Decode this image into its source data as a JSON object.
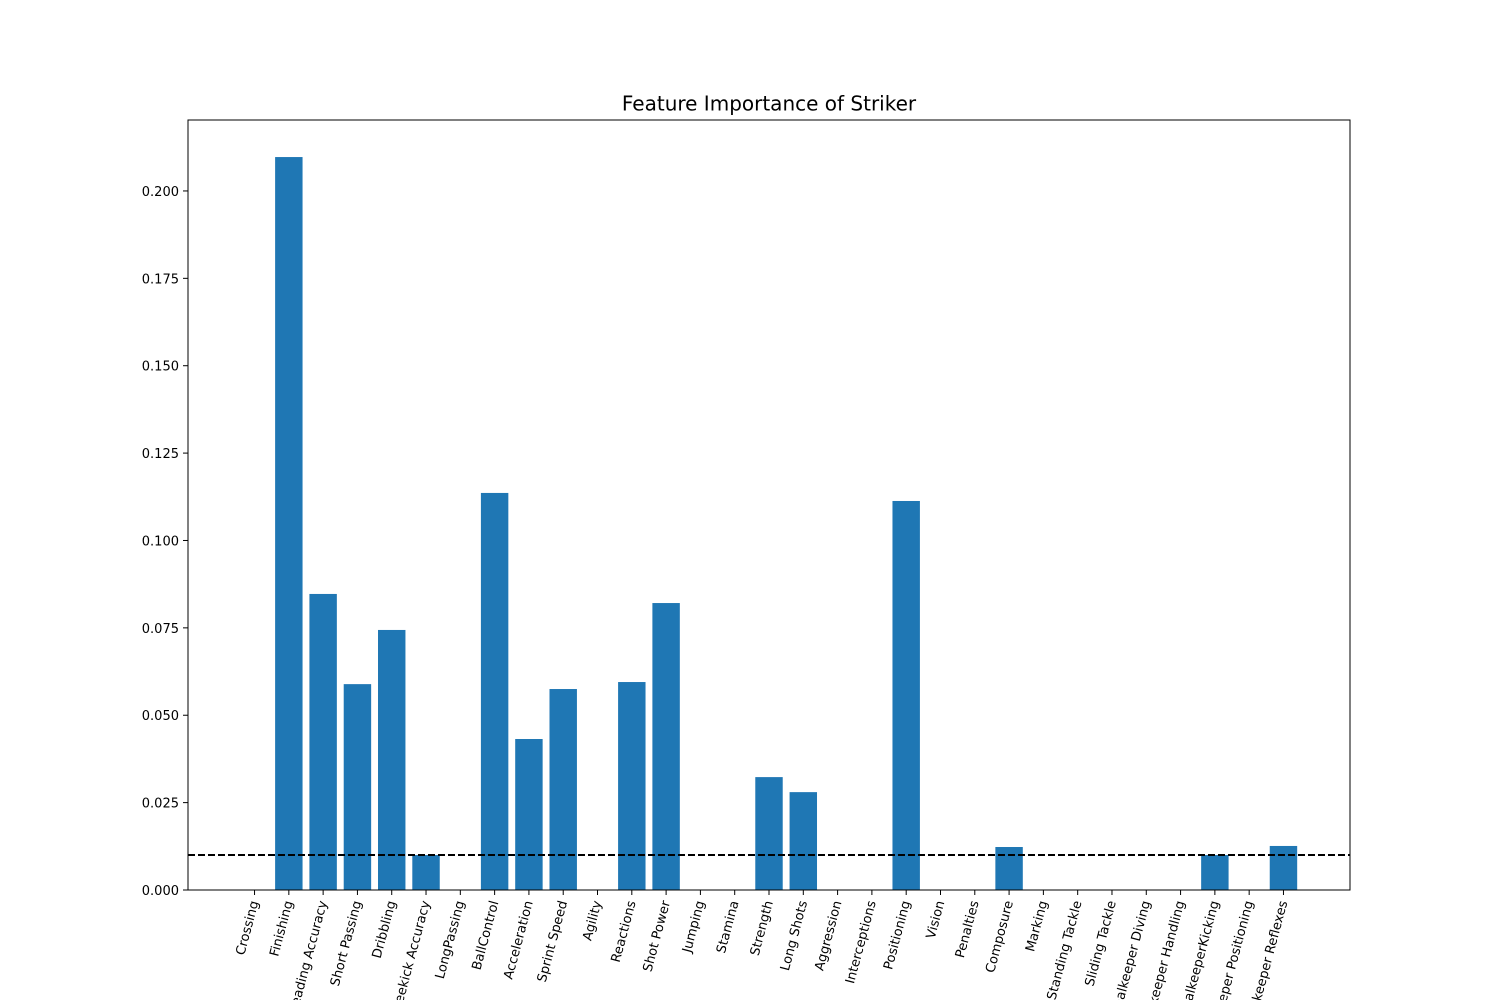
{
  "chart_data": {
    "type": "bar",
    "title": "Feature Importance of Striker",
    "categories": [
      "Crossing",
      "Finishing",
      "Heading Accuracy",
      "Short Passing",
      "Dribbling",
      "Freekick Accuracy",
      "LongPassing",
      "BallControl",
      "Acceleration",
      "Sprint Speed",
      "Agility",
      "Reactions",
      "Shot Power",
      "Jumping",
      "Stamina",
      "Strength",
      "Long Shots",
      "Aggression",
      "Interceptions",
      "Positioning",
      "Vision",
      "Penalties",
      "Composure",
      "Marking",
      "Standing Tackle",
      "Sliding Tackle",
      "Goalkeeper Diving",
      "Goalkeeper Handling",
      "GoalkeeperKicking",
      "Goalkeeper Positioning",
      "Goalkeeper Reflexes"
    ],
    "values": [
      0,
      0.2097,
      0.0847,
      0.0589,
      0.0744,
      0.01,
      0,
      0.1136,
      0.0432,
      0.0575,
      0,
      0.0595,
      0.0821,
      0,
      0,
      0.0323,
      0.028,
      0,
      0,
      0.1113,
      0,
      0,
      0.0123,
      0,
      0,
      0,
      0,
      0,
      0.01,
      0,
      0.0126
    ],
    "color": "#1f77b4",
    "threshold": 0.01,
    "ylim": [
      0,
      0.2203
    ],
    "yticks": [
      {
        "value": 0,
        "label": "0.000"
      },
      {
        "value": 0.025,
        "label": "0.025"
      },
      {
        "value": 0.05,
        "label": "0.050"
      },
      {
        "value": 0.075,
        "label": "0.075"
      },
      {
        "value": 0.1,
        "label": "0.100"
      },
      {
        "value": 0.125,
        "label": "0.125"
      },
      {
        "value": 0.15,
        "label": "0.150"
      },
      {
        "value": 0.175,
        "label": "0.175"
      },
      {
        "value": 0.2,
        "label": "0.200"
      }
    ],
    "grid": false
  }
}
